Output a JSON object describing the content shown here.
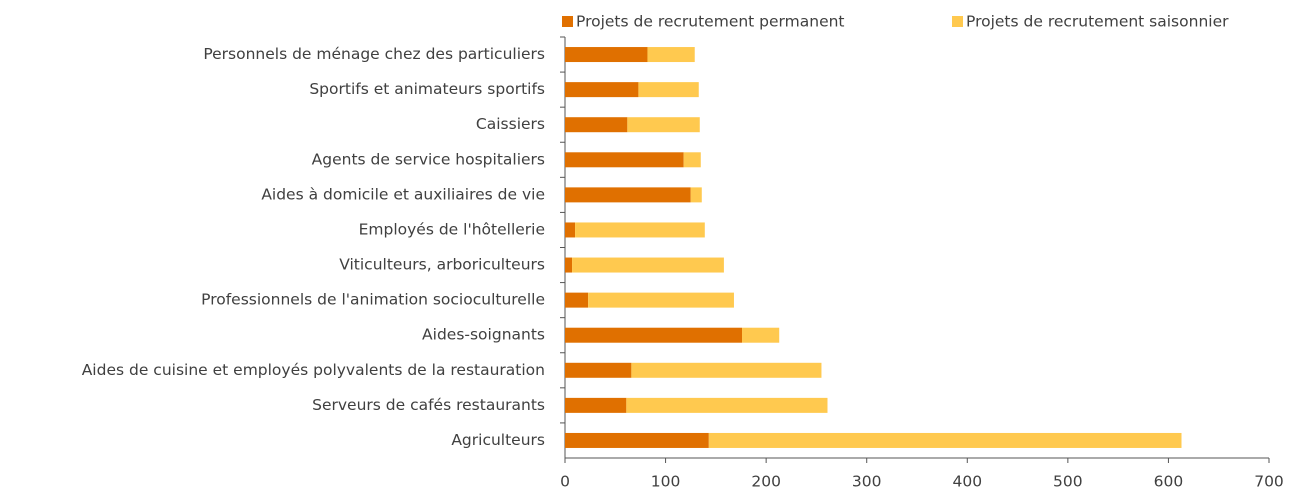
{
  "chart_data": {
    "type": "stacked-barh",
    "categories": [
      "Personnels de ménage chez des particuliers",
      "Sportifs et animateurs sportifs",
      "Caissiers",
      "Agents de service hospitaliers",
      "Aides à domicile et auxiliaires de vie",
      "Employés de l'hôtellerie",
      "Viticulteurs, arboriculteurs",
      "Professionnels de l'animation socioculturelle",
      "Aides-soignants",
      "Aides de cuisine et employés polyvalents de la restauration",
      "Serveurs de cafés restaurants",
      "Agriculteurs"
    ],
    "series": [
      {
        "name": "Projets de recrutement permanent",
        "color": "#e07000",
        "values": [
          82,
          73,
          62,
          118,
          125,
          10,
          7,
          23,
          176,
          66,
          61,
          143
        ]
      },
      {
        "name": "Projets de recrutement saisonnier",
        "color": "#ffc94f",
        "values": [
          47,
          60,
          72,
          17,
          11,
          129,
          151,
          145,
          37,
          189,
          200,
          470
        ]
      }
    ],
    "xlim": [
      0,
      700
    ],
    "xticks": [
      0,
      100,
      200,
      300,
      400,
      500,
      600,
      700
    ],
    "legend": "top"
  }
}
